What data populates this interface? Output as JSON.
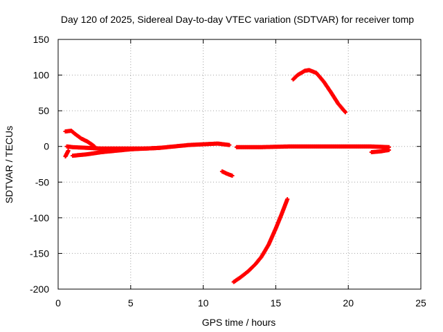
{
  "chart_data": {
    "type": "scatter",
    "title": "Day 120 of 2025, Sidereal Day-to-day VTEC variation (SDTVAR) for receiver tomp",
    "xlabel": "GPS time / hours",
    "ylabel": "SDTVAR / TECUs",
    "xlim": [
      0,
      25
    ],
    "ylim": [
      -200,
      150
    ],
    "xticks": [
      0,
      5,
      10,
      15,
      20,
      25
    ],
    "yticks": [
      -200,
      -150,
      -100,
      -50,
      0,
      50,
      100,
      150
    ],
    "grid": true,
    "marker": "+",
    "color": "#ff0000",
    "series": [
      {
        "name": "main-band-upper",
        "points": [
          [
            0.6,
            0
          ],
          [
            1,
            -1
          ],
          [
            2,
            -2
          ],
          [
            3,
            -3
          ],
          [
            4,
            -3
          ],
          [
            5,
            -3
          ],
          [
            6,
            -3
          ],
          [
            7,
            -2
          ],
          [
            8,
            0
          ],
          [
            9,
            2
          ],
          [
            10,
            3
          ],
          [
            11,
            4
          ],
          [
            11.8,
            2
          ]
        ]
      },
      {
        "name": "main-band-lower",
        "points": [
          [
            1,
            -13
          ],
          [
            2,
            -11
          ],
          [
            3,
            -8
          ],
          [
            4,
            -6
          ],
          [
            5,
            -4
          ],
          [
            6,
            -3
          ],
          [
            7,
            -2
          ]
        ]
      },
      {
        "name": "early-decay-arc",
        "points": [
          [
            0.5,
            21
          ],
          [
            0.9,
            22
          ],
          [
            1.2,
            17
          ],
          [
            1.6,
            11
          ],
          [
            2,
            7
          ],
          [
            2.3,
            3
          ],
          [
            2.5,
            0
          ]
        ]
      },
      {
        "name": "early-neg-segment",
        "points": [
          [
            0.5,
            -14
          ],
          [
            0.6,
            -10
          ],
          [
            0.7,
            -6
          ]
        ]
      },
      {
        "name": "late-flat-band",
        "points": [
          [
            12.3,
            -1
          ],
          [
            14,
            -1
          ],
          [
            16,
            0
          ],
          [
            18,
            0
          ],
          [
            20,
            0
          ],
          [
            21.5,
            0
          ],
          [
            22.8,
            -1
          ]
        ]
      },
      {
        "name": "late-dip-segment",
        "points": [
          [
            21.6,
            -8
          ],
          [
            22.2,
            -7
          ],
          [
            22.8,
            -5
          ]
        ]
      },
      {
        "name": "small-neg-segment",
        "points": [
          [
            11.3,
            -35
          ],
          [
            11.6,
            -38
          ],
          [
            12,
            -41
          ]
        ]
      },
      {
        "name": "big-negative-ramp",
        "points": [
          [
            12.1,
            -190
          ],
          [
            12.6,
            -183
          ],
          [
            13.1,
            -175
          ],
          [
            13.6,
            -165
          ],
          [
            14,
            -155
          ],
          [
            14.5,
            -138
          ],
          [
            15,
            -115
          ],
          [
            15.4,
            -95
          ],
          [
            15.8,
            -74
          ]
        ]
      },
      {
        "name": "positive-hump",
        "points": [
          [
            16.2,
            94
          ],
          [
            16.5,
            100
          ],
          [
            17,
            106
          ],
          [
            17.3,
            107
          ],
          [
            17.8,
            103
          ],
          [
            18.3,
            91
          ],
          [
            18.8,
            76
          ],
          [
            19.3,
            60
          ],
          [
            19.8,
            48
          ]
        ]
      }
    ]
  }
}
